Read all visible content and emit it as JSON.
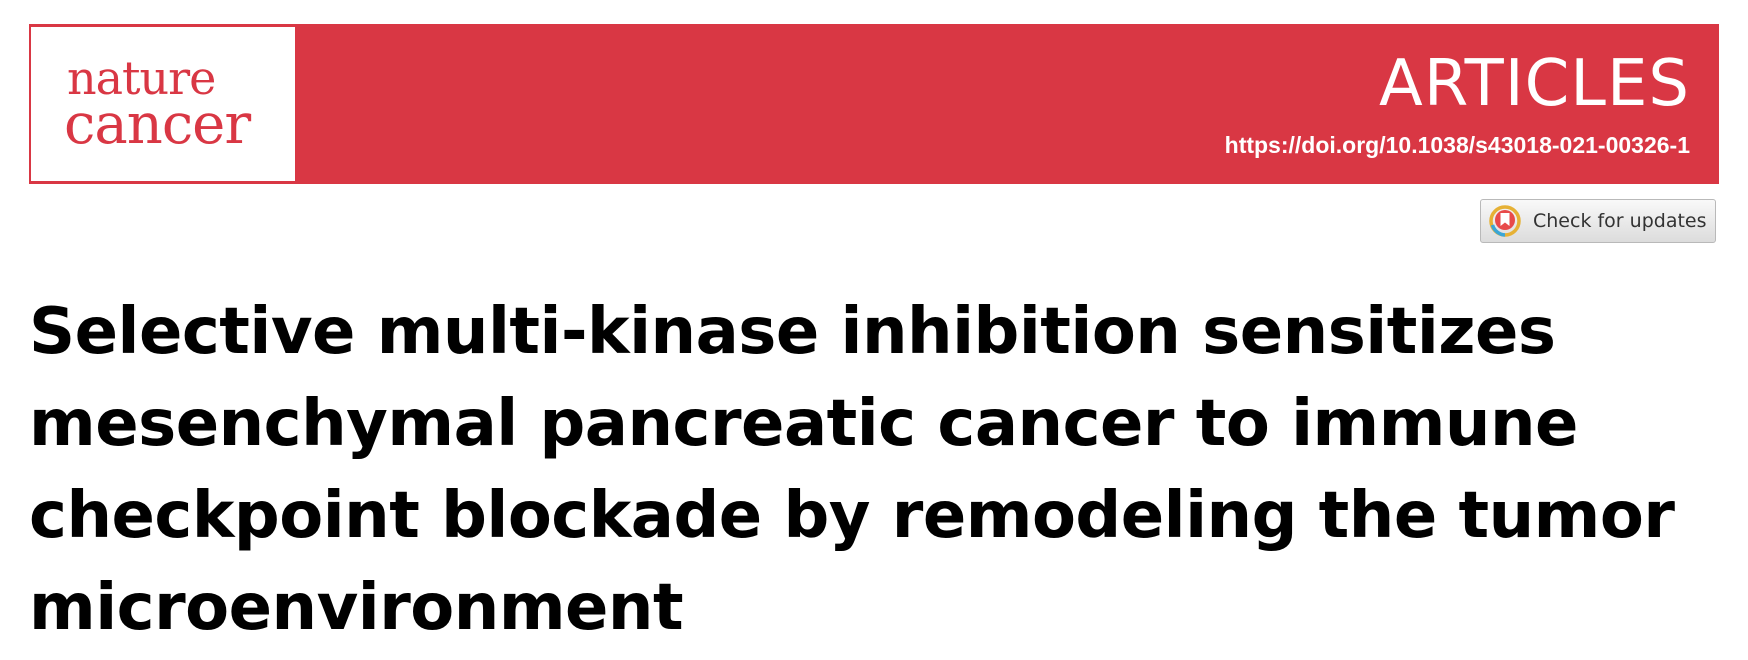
{
  "journal": {
    "logo_line1": "nature",
    "logo_line2": "cancer",
    "brand_color": "#d93744"
  },
  "header": {
    "section": "ARTICLES",
    "doi": "https://doi.org/10.1038/s43018-021-00326-1"
  },
  "updates_button": {
    "label": "Check for updates",
    "icon": "crossmark-icon"
  },
  "article": {
    "title_lines": [
      "Selective multi-kinase inhibition sensitizes",
      "mesenchymal pancreatic cancer to immune",
      "checkpoint blockade by remodeling the tumor",
      "microenvironment"
    ]
  }
}
